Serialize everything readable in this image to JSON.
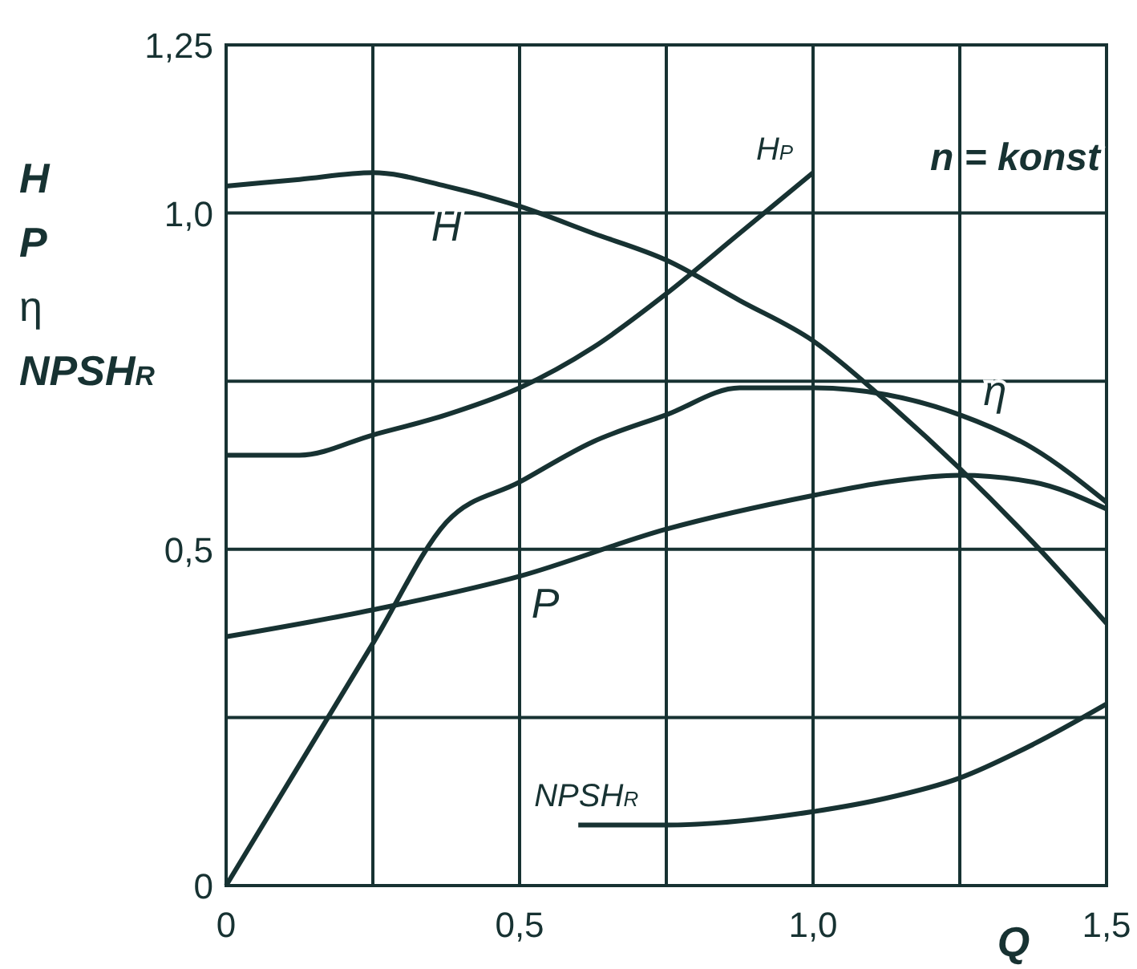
{
  "chart_data": {
    "type": "line",
    "xlabel": "Q",
    "ylabel": "H P η NPSH$_{R}$",
    "xlim": [
      0,
      1.5
    ],
    "ylim": [
      0,
      1.25
    ],
    "xticks": [
      0,
      {
        "value": 0.25,
        "label": null
      },
      {
        "value": 0.5,
        "label": "0,5"
      },
      {
        "value": 0.75,
        "label": null
      },
      {
        "value": 1,
        "label": "1,0"
      },
      {
        "value": 1.25,
        "label": null
      },
      {
        "value": 1.5,
        "label": "1,5"
      }
    ],
    "yticks": [
      0,
      {
        "value": 0.25,
        "label": null
      },
      {
        "value": 0.5,
        "label": "0,5"
      },
      {
        "value": 0.75,
        "label": null
      },
      {
        "value": 1,
        "label": "1,0"
      },
      {
        "value": 1.25,
        "label": "1,25"
      }
    ],
    "grid": true,
    "marker": "none",
    "line_style": "solid",
    "annotations": [
      "n = konst"
    ],
    "series": [
      {
        "name": "H",
        "color": "#173232",
        "x": [
          0,
          0.125,
          0.25,
          0.375,
          0.5,
          0.625,
          0.75,
          0.875,
          1,
          1.125,
          1.25,
          1.375,
          1.5
        ],
        "values": [
          1.04,
          1.05,
          1.06,
          1.04,
          1.01,
          0.97,
          0.93,
          0.87,
          0.81,
          0.72,
          0.62,
          0.51,
          0.39
        ]
      },
      {
        "name": "H$_{P}$",
        "color": "#173232",
        "x": [
          0,
          0.125,
          0.25,
          0.375,
          0.5,
          0.625,
          0.75,
          0.875,
          1
        ],
        "values": [
          0.64,
          0.64,
          0.67,
          0.7,
          0.74,
          0.8,
          0.88,
          0.97,
          1.06
        ]
      },
      {
        "name": "η",
        "color": "#173232",
        "x": [
          0,
          0.125,
          0.25,
          0.375,
          0.5,
          0.625,
          0.75,
          0.875,
          1,
          1.125,
          1.25,
          1.375,
          1.5
        ],
        "values": [
          0,
          0.18,
          0.36,
          0.54,
          0.6,
          0.66,
          0.7,
          0.74,
          0.74,
          0.73,
          0.7,
          0.65,
          0.57
        ]
      },
      {
        "name": "P",
        "color": "#173232",
        "x": [
          0,
          0.25,
          0.5,
          0.75,
          1,
          1.125,
          1.25,
          1.375,
          1.5
        ],
        "values": [
          0.37,
          0.41,
          0.46,
          0.53,
          0.58,
          0.6,
          0.61,
          0.6,
          0.56
        ]
      },
      {
        "name": "NPSH$_{R}$",
        "color": "#173232",
        "x": [
          0.6,
          0.75,
          1,
          1.125,
          1.25,
          1.375,
          1.5
        ],
        "values": [
          0.09,
          0.09,
          0.11,
          0.13,
          0.16,
          0.21,
          0.27
        ]
      }
    ]
  }
}
